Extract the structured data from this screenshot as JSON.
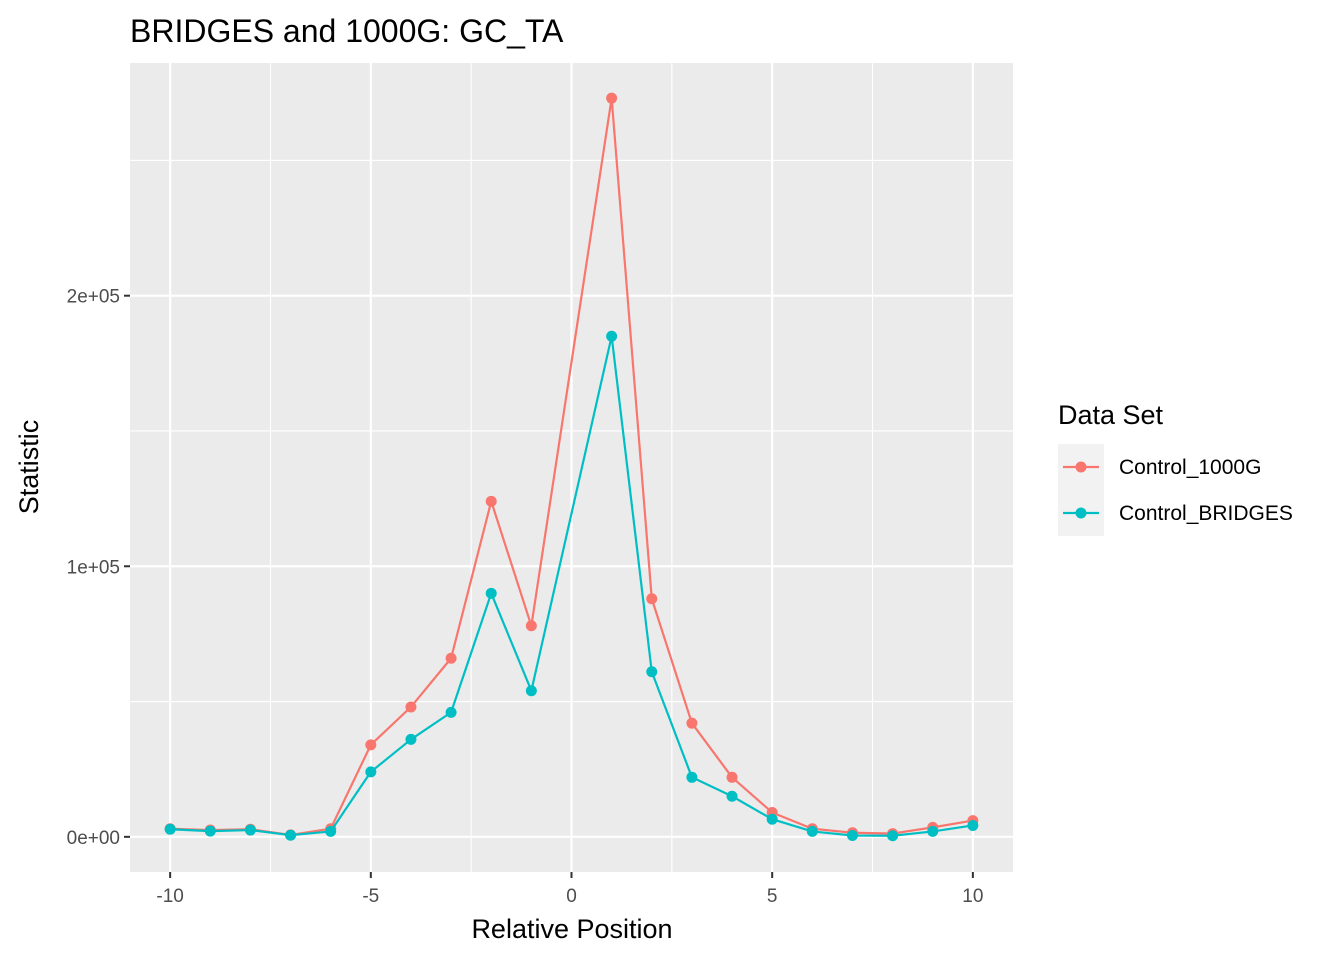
{
  "chart_data": {
    "type": "line",
    "title": "BRIDGES and 1000G: GC_TA",
    "xlabel": "Relative Position",
    "ylabel": "Statistic",
    "xlim": [
      -11,
      11
    ],
    "ylim": [
      -13000,
      286000
    ],
    "x_ticks": [
      -10,
      -5,
      0,
      5,
      10
    ],
    "x_tick_labels": [
      "-10",
      "-5",
      "0",
      "5",
      "10"
    ],
    "y_ticks": [
      0,
      100000,
      200000
    ],
    "y_tick_labels": [
      "0e+00",
      "1e+05",
      "2e+05"
    ],
    "grid": true,
    "legend": {
      "title": "Data Set",
      "position": "right"
    },
    "x": [
      -10,
      -9,
      -8,
      -7,
      -6,
      -5,
      -4,
      -3,
      -2,
      -1,
      1,
      2,
      3,
      4,
      5,
      6,
      7,
      8,
      9,
      10
    ],
    "series": [
      {
        "name": "Control_1000G",
        "color": "#F8766D",
        "values": [
          3000,
          2500,
          2800,
          700,
          3000,
          34000,
          48000,
          66000,
          124000,
          78000,
          273000,
          88000,
          42000,
          22000,
          9000,
          3000,
          1500,
          1200,
          3500,
          6000
        ]
      },
      {
        "name": "Control_BRIDGES",
        "color": "#00BFC4",
        "values": [
          2800,
          2100,
          2500,
          600,
          2000,
          24000,
          36000,
          46000,
          90000,
          54000,
          185000,
          61000,
          22000,
          15000,
          6500,
          2000,
          500,
          400,
          2000,
          4200
        ]
      }
    ]
  }
}
